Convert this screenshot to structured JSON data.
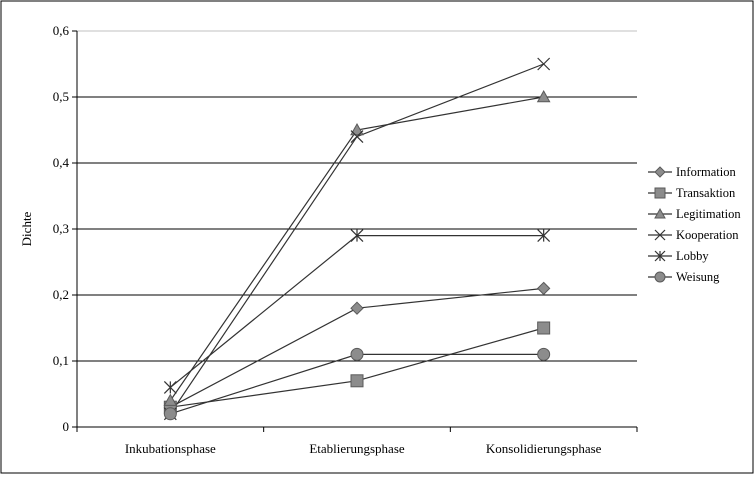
{
  "chart_data": {
    "type": "line",
    "title": "",
    "xlabel": "",
    "ylabel": "Dichte",
    "categories": [
      "Inkubationsphase",
      "Etablierungsphase",
      "Konsolidierungsphase"
    ],
    "ylim": [
      0,
      0.6
    ],
    "yticks": [
      0,
      0.1,
      0.2,
      0.3,
      0.4,
      0.5,
      0.6
    ],
    "ytick_labels": [
      "0",
      "0,1",
      "0,2",
      "0,3",
      "0,4",
      "0,5",
      "0,6"
    ],
    "grid": "horizontal",
    "legend_position": "right",
    "series": [
      {
        "name": "Information",
        "marker": "diamond",
        "values": [
          0.03,
          0.18,
          0.21
        ]
      },
      {
        "name": "Transaktion",
        "marker": "square",
        "values": [
          0.03,
          0.07,
          0.15
        ]
      },
      {
        "name": "Legitimation",
        "marker": "triangle",
        "values": [
          0.04,
          0.45,
          0.5
        ]
      },
      {
        "name": "Kooperation",
        "marker": "x",
        "values": [
          0.02,
          0.44,
          0.55
        ]
      },
      {
        "name": "Lobby",
        "marker": "star",
        "values": [
          0.06,
          0.29,
          0.29
        ]
      },
      {
        "name": "Weisung",
        "marker": "circle",
        "values": [
          0.02,
          0.11,
          0.11
        ]
      }
    ],
    "colors": {
      "line": "#333333",
      "marker_fill": "#8c8c8c",
      "marker_stroke": "#5a5a5a",
      "grid_major": "#000000",
      "grid_minor": "#c0c0c0"
    }
  }
}
